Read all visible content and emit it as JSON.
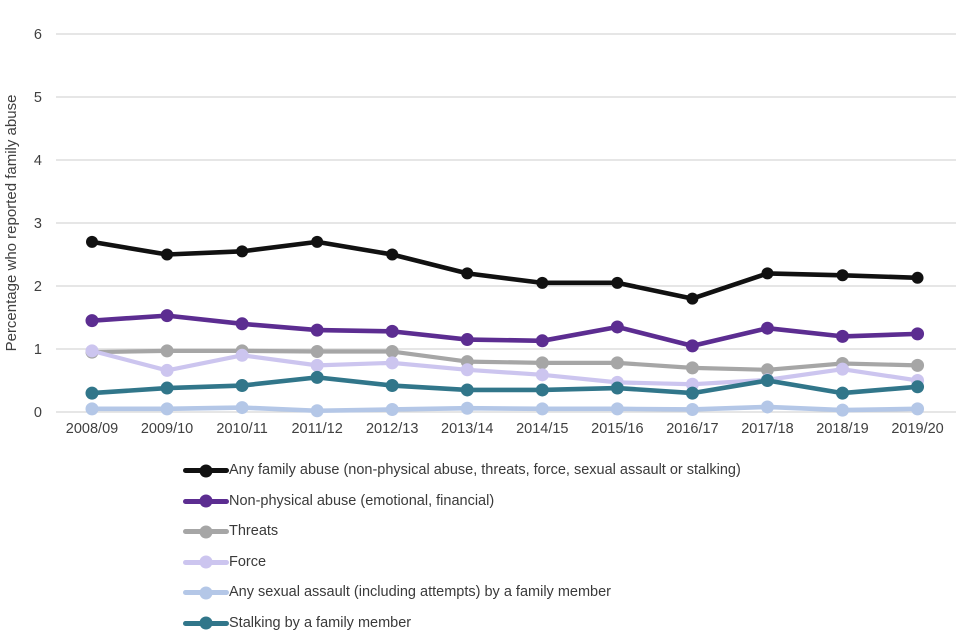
{
  "chart_data": {
    "type": "line",
    "title": "",
    "xlabel": "",
    "ylabel": "Percentage who reported family abuse",
    "ylim": [
      0,
      6
    ],
    "yticks": [
      0,
      1,
      2,
      3,
      4,
      5,
      6
    ],
    "grid": "horizontal",
    "legend_position": "bottom",
    "categories": [
      "2008/09",
      "2009/10",
      "2010/11",
      "2011/12",
      "2012/13",
      "2013/14",
      "2014/15",
      "2015/16",
      "2016/17",
      "2017/18",
      "2018/19",
      "2019/20"
    ],
    "series": [
      {
        "name": "Any family abuse (non-physical abuse, threats, force, sexual assault or stalking)",
        "color": "#111111",
        "values": [
          2.7,
          2.5,
          2.55,
          2.7,
          2.5,
          2.2,
          2.05,
          2.05,
          1.8,
          2.2,
          2.17,
          2.13
        ]
      },
      {
        "name": "Non-physical abuse (emotional, financial)",
        "color": "#5c2d91",
        "values": [
          1.45,
          1.53,
          1.4,
          1.3,
          1.28,
          1.15,
          1.13,
          1.35,
          1.05,
          1.33,
          1.2,
          1.24
        ]
      },
      {
        "name": "Threats",
        "color": "#a6a6a6",
        "values": [
          0.95,
          0.97,
          0.97,
          0.96,
          0.96,
          0.8,
          0.78,
          0.78,
          0.7,
          0.67,
          0.77,
          0.74
        ]
      },
      {
        "name": "Force",
        "color": "#ccc5ef",
        "values": [
          0.97,
          0.66,
          0.9,
          0.74,
          0.78,
          0.67,
          0.59,
          0.47,
          0.44,
          0.51,
          0.68,
          0.5
        ]
      },
      {
        "name": "Any sexual assault (including attempts) by a family member",
        "color": "#b4c7e7",
        "values": [
          0.05,
          0.05,
          0.07,
          0.02,
          0.04,
          0.06,
          0.05,
          0.05,
          0.04,
          0.08,
          0.03,
          0.05
        ]
      },
      {
        "name": "Stalking by a family member",
        "color": "#31768a",
        "values": [
          0.3,
          0.38,
          0.42,
          0.55,
          0.42,
          0.35,
          0.35,
          0.38,
          0.3,
          0.5,
          0.3,
          0.4
        ]
      }
    ],
    "gridline_color": "#d6d6d6"
  }
}
